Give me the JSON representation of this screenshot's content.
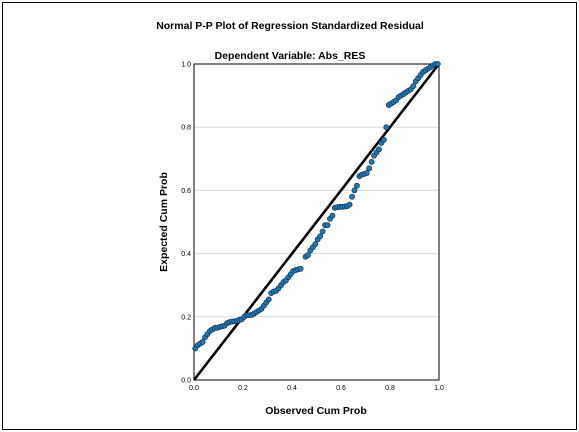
{
  "chart_data": {
    "type": "scatter",
    "title": "Normal P-P Plot of Regression Standardized Residual",
    "subtitle": "Dependent Variable: Abs_RES",
    "xlabel": "Observed Cum Prob",
    "ylabel": "Expected Cum Prob",
    "xlim": [
      0.0,
      1.0
    ],
    "ylim": [
      0.0,
      1.0
    ],
    "x_ticks": [
      "0.0",
      "0.2",
      "0.4",
      "0.6",
      "0.8",
      "1.0"
    ],
    "y_ticks": [
      "0.0",
      "0.2",
      "0.4",
      "0.6",
      "0.8",
      "1.0"
    ],
    "grid": "horizontal",
    "reference_line": [
      [
        0,
        0
      ],
      [
        1,
        1
      ]
    ],
    "marker_color": "#1f77b4",
    "points": [
      [
        0.005,
        0.1
      ],
      [
        0.015,
        0.11
      ],
      [
        0.025,
        0.115
      ],
      [
        0.035,
        0.12
      ],
      [
        0.045,
        0.135
      ],
      [
        0.055,
        0.145
      ],
      [
        0.065,
        0.155
      ],
      [
        0.075,
        0.16
      ],
      [
        0.085,
        0.165
      ],
      [
        0.095,
        0.165
      ],
      [
        0.105,
        0.168
      ],
      [
        0.115,
        0.17
      ],
      [
        0.125,
        0.172
      ],
      [
        0.135,
        0.18
      ],
      [
        0.145,
        0.183
      ],
      [
        0.155,
        0.185
      ],
      [
        0.165,
        0.186
      ],
      [
        0.175,
        0.187
      ],
      [
        0.185,
        0.19
      ],
      [
        0.195,
        0.192
      ],
      [
        0.205,
        0.2
      ],
      [
        0.215,
        0.205
      ],
      [
        0.225,
        0.205
      ],
      [
        0.235,
        0.206
      ],
      [
        0.245,
        0.21
      ],
      [
        0.255,
        0.215
      ],
      [
        0.265,
        0.22
      ],
      [
        0.275,
        0.225
      ],
      [
        0.285,
        0.235
      ],
      [
        0.295,
        0.245
      ],
      [
        0.305,
        0.255
      ],
      [
        0.315,
        0.275
      ],
      [
        0.325,
        0.28
      ],
      [
        0.335,
        0.282
      ],
      [
        0.345,
        0.29
      ],
      [
        0.355,
        0.3
      ],
      [
        0.365,
        0.31
      ],
      [
        0.375,
        0.315
      ],
      [
        0.385,
        0.325
      ],
      [
        0.395,
        0.335
      ],
      [
        0.405,
        0.345
      ],
      [
        0.415,
        0.348
      ],
      [
        0.425,
        0.35
      ],
      [
        0.435,
        0.352
      ],
      [
        0.455,
        0.39
      ],
      [
        0.465,
        0.395
      ],
      [
        0.475,
        0.41
      ],
      [
        0.485,
        0.42
      ],
      [
        0.495,
        0.43
      ],
      [
        0.505,
        0.445
      ],
      [
        0.515,
        0.455
      ],
      [
        0.525,
        0.47
      ],
      [
        0.535,
        0.49
      ],
      [
        0.545,
        0.49
      ],
      [
        0.555,
        0.51
      ],
      [
        0.565,
        0.52
      ],
      [
        0.575,
        0.545
      ],
      [
        0.585,
        0.547
      ],
      [
        0.595,
        0.548
      ],
      [
        0.605,
        0.548
      ],
      [
        0.615,
        0.549
      ],
      [
        0.625,
        0.55
      ],
      [
        0.635,
        0.555
      ],
      [
        0.645,
        0.58
      ],
      [
        0.655,
        0.6
      ],
      [
        0.665,
        0.615
      ],
      [
        0.675,
        0.645
      ],
      [
        0.685,
        0.65
      ],
      [
        0.695,
        0.652
      ],
      [
        0.705,
        0.655
      ],
      [
        0.715,
        0.67
      ],
      [
        0.725,
        0.69
      ],
      [
        0.735,
        0.71
      ],
      [
        0.745,
        0.72
      ],
      [
        0.755,
        0.73
      ],
      [
        0.765,
        0.75
      ],
      [
        0.775,
        0.76
      ],
      [
        0.785,
        0.8
      ],
      [
        0.795,
        0.87
      ],
      [
        0.805,
        0.875
      ],
      [
        0.815,
        0.88
      ],
      [
        0.825,
        0.885
      ],
      [
        0.835,
        0.895
      ],
      [
        0.845,
        0.9
      ],
      [
        0.855,
        0.905
      ],
      [
        0.865,
        0.91
      ],
      [
        0.875,
        0.915
      ],
      [
        0.885,
        0.92
      ],
      [
        0.895,
        0.93
      ],
      [
        0.905,
        0.945
      ],
      [
        0.915,
        0.955
      ],
      [
        0.925,
        0.965
      ],
      [
        0.935,
        0.975
      ],
      [
        0.945,
        0.98
      ],
      [
        0.955,
        0.985
      ],
      [
        0.965,
        0.99
      ],
      [
        0.975,
        0.995
      ],
      [
        0.985,
        1.0
      ],
      [
        0.995,
        1.0
      ]
    ]
  }
}
